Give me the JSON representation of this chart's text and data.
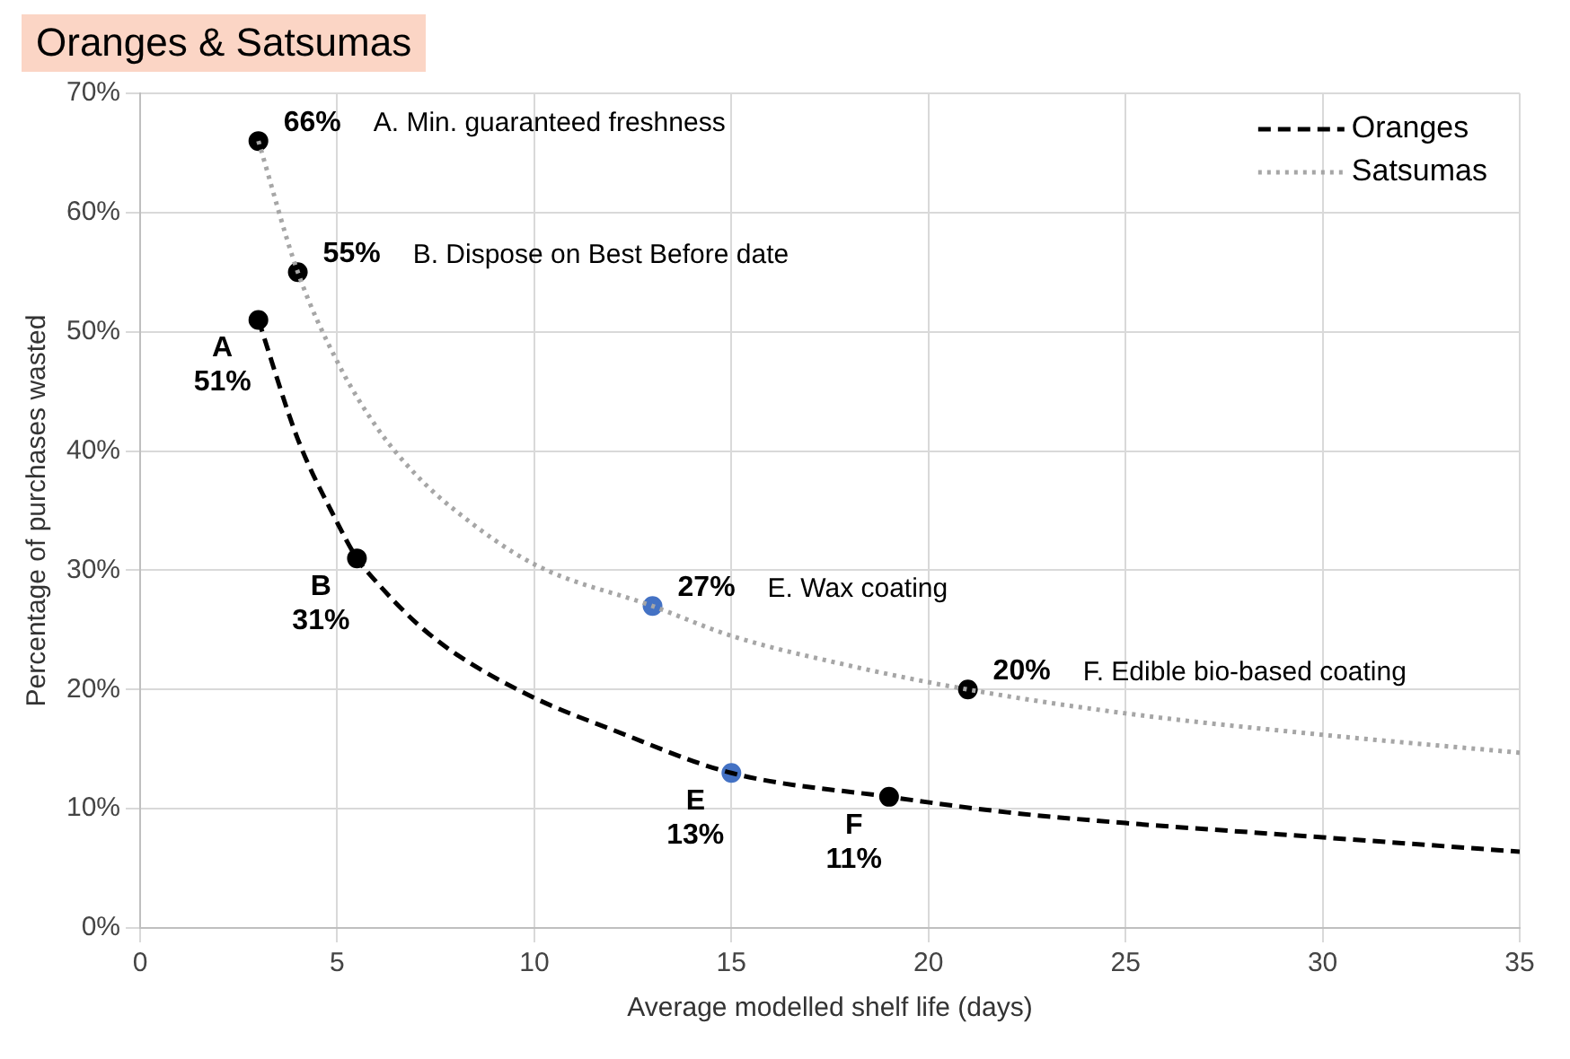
{
  "chart_data": {
    "type": "line",
    "title": "Oranges & Satsumas",
    "xlabel": "Average modelled shelf life (days)",
    "ylabel": "Percentage of purchases wasted",
    "series": [
      {
        "name": "Oranges",
        "type": "line",
        "color": "#000000",
        "line_style": "dashed",
        "marker": "none",
        "x": [
          3,
          4,
          5,
          5.5,
          6,
          7,
          8,
          10,
          12,
          15,
          19,
          22,
          25,
          30,
          35
        ],
        "values": [
          51,
          41,
          34,
          31,
          29,
          25.6,
          23,
          19.3,
          16.6,
          13,
          11,
          9.7,
          8.8,
          7.6,
          6.4
        ]
      },
      {
        "name": "Satsumas",
        "type": "line",
        "color": "#a6a6a6",
        "line_style": "dotted",
        "marker": "none",
        "x": [
          3,
          4,
          5,
          6,
          7,
          8,
          10,
          13,
          15,
          18,
          21,
          25,
          30,
          35
        ],
        "values": [
          66,
          55,
          47.5,
          42,
          38,
          35,
          30.5,
          27,
          24.5,
          22,
          20,
          18,
          16.2,
          14.7
        ]
      },
      {
        "type": "scatter",
        "marker": "circle",
        "x": [
          3,
          5.5,
          15,
          19,
          3,
          4,
          13,
          21
        ],
        "values": [
          51,
          31,
          13,
          11,
          66,
          55,
          27,
          20
        ],
        "colors": [
          "#000000",
          "#000000",
          "#4472c4",
          "#000000",
          "#000000",
          "#000000",
          "#4472c4",
          "#000000"
        ]
      }
    ],
    "xlim": [
      0,
      35
    ],
    "xticks": [
      0,
      5,
      10,
      15,
      20,
      25,
      30,
      35
    ],
    "ylim": [
      0,
      70
    ],
    "yticks": [
      {
        "value": 0,
        "label": "0%"
      },
      {
        "value": 10,
        "label": "10%"
      },
      {
        "value": 20,
        "label": "20%"
      },
      {
        "value": 30,
        "label": "30%"
      },
      {
        "value": 40,
        "label": "40%"
      },
      {
        "value": 50,
        "label": "50%"
      },
      {
        "value": 60,
        "label": "60%"
      },
      {
        "value": 70,
        "label": "70%"
      }
    ],
    "grid": true,
    "legend": "top right",
    "annotations": [
      {
        "text": "A\n51%",
        "x": 3,
        "y": 51
      },
      {
        "text": "B\n31%",
        "x": 5.5,
        "y": 31
      },
      {
        "text": "E\n13%",
        "x": 15,
        "y": 13
      },
      {
        "text": "F\n11%",
        "x": 19,
        "y": 11
      },
      {
        "text": "66%",
        "x": 3,
        "y": 66
      },
      "A. Min. guaranteed freshness",
      {
        "text": "55%",
        "x": 4,
        "y": 55
      },
      "B. Dispose on Best Before date",
      {
        "text": "27%",
        "x": 13,
        "y": 27
      },
      "E. Wax coating",
      {
        "text": "20%",
        "x": 21,
        "y": 20
      },
      "F. Edible bio-based coating"
    ]
  }
}
